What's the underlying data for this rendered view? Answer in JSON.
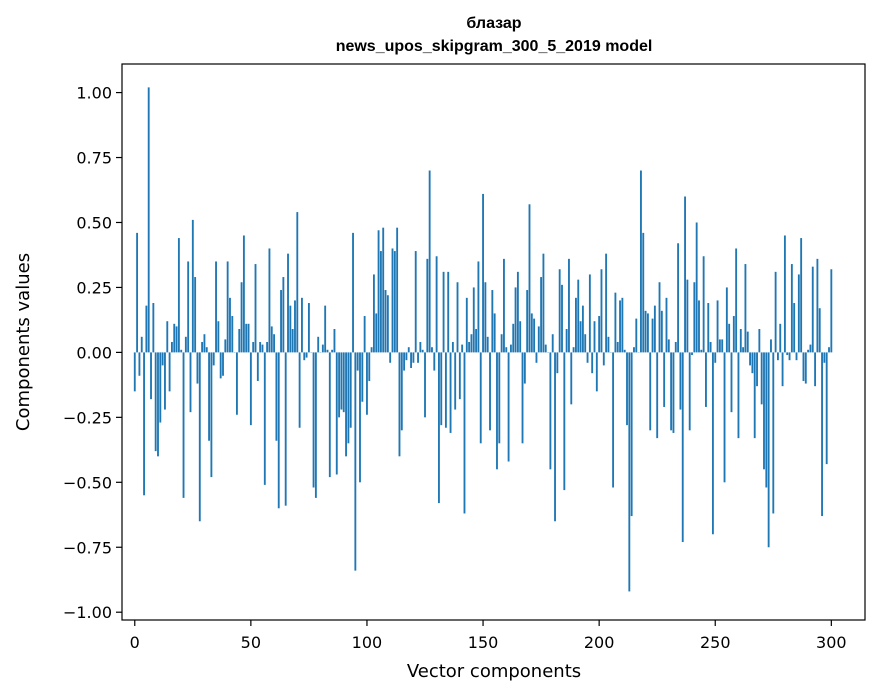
{
  "chart_data": {
    "type": "bar",
    "title_line1": "блазар",
    "title_line2": "news_upos_skipgram_300_5_2019 model",
    "xlabel": "Vector components",
    "ylabel": "Components values",
    "xlim": [
      -5.5,
      314.5
    ],
    "ylim": [
      -1.03,
      1.11
    ],
    "xticks": [
      0,
      50,
      100,
      150,
      200,
      250,
      300
    ],
    "xtick_labels": [
      "0",
      "50",
      "100",
      "150",
      "200",
      "250",
      "300"
    ],
    "yticks": [
      -1.0,
      -0.75,
      -0.5,
      -0.25,
      0.0,
      0.25,
      0.5,
      0.75,
      1.0
    ],
    "ytick_labels": [
      "−1.00",
      "−0.75",
      "−0.50",
      "−0.25",
      "0.00",
      "0.25",
      "0.50",
      "0.75",
      "1.00"
    ],
    "bar_color": "#1f77b4",
    "values": [
      -0.15,
      0.46,
      -0.09,
      0.06,
      -0.55,
      0.18,
      1.02,
      -0.18,
      0.19,
      -0.38,
      -0.4,
      -0.27,
      -0.05,
      -0.22,
      0.12,
      -0.15,
      0.04,
      0.11,
      0.1,
      0.44,
      0.01,
      -0.56,
      0.06,
      0.35,
      -0.23,
      0.51,
      0.29,
      -0.12,
      -0.65,
      0.04,
      0.07,
      0.02,
      -0.34,
      -0.48,
      -0.05,
      0.35,
      0.12,
      -0.1,
      -0.09,
      0.05,
      0.35,
      0.21,
      0.14,
      0.0,
      -0.24,
      0.09,
      0.27,
      0.45,
      0.11,
      0.11,
      -0.28,
      0.04,
      0.34,
      -0.11,
      0.04,
      0.03,
      -0.51,
      0.04,
      0.4,
      0.1,
      0.07,
      -0.34,
      -0.6,
      0.24,
      0.29,
      -0.59,
      0.38,
      0.18,
      0.09,
      0.2,
      0.54,
      -0.29,
      0.21,
      -0.03,
      -0.02,
      0.19,
      0.0,
      -0.52,
      -0.56,
      0.06,
      0.0,
      0.03,
      0.18,
      0.01,
      -0.48,
      0.01,
      0.09,
      -0.47,
      -0.25,
      -0.22,
      -0.23,
      -0.4,
      -0.35,
      -0.29,
      0.46,
      -0.84,
      -0.07,
      -0.5,
      -0.19,
      0.14,
      -0.24,
      -0.11,
      0.02,
      0.3,
      0.15,
      0.47,
      0.39,
      0.48,
      0.24,
      0.22,
      -0.04,
      0.4,
      0.39,
      0.48,
      -0.4,
      -0.3,
      -0.07,
      -0.03,
      0.02,
      -0.06,
      -0.04,
      0.39,
      -0.04,
      0.04,
      0.01,
      -0.25,
      0.36,
      0.7,
      0.02,
      -0.07,
      0.37,
      -0.58,
      -0.28,
      0.31,
      -0.29,
      0.31,
      -0.31,
      0.04,
      -0.22,
      0.27,
      -0.18,
      0.03,
      -0.62,
      0.21,
      0.04,
      0.07,
      0.25,
      0.09,
      0.35,
      -0.35,
      0.61,
      0.27,
      0.06,
      -0.3,
      0.24,
      0.15,
      -0.45,
      -0.35,
      0.07,
      0.36,
      0.02,
      -0.42,
      0.03,
      0.11,
      0.25,
      0.31,
      0.12,
      -0.35,
      -0.12,
      0.24,
      0.57,
      0.15,
      0.13,
      -0.04,
      0.1,
      0.29,
      0.38,
      0.03,
      0.0,
      -0.45,
      0.07,
      -0.65,
      -0.08,
      0.32,
      0.26,
      -0.53,
      0.09,
      0.36,
      -0.2,
      0.02,
      0.21,
      0.28,
      0.12,
      0.18,
      0.07,
      -0.04,
      0.3,
      -0.08,
      0.12,
      -0.15,
      0.14,
      0.32,
      -0.05,
      0.38,
      0.06,
      0.0,
      -0.52,
      0.23,
      0.04,
      0.2,
      0.21,
      0.01,
      -0.28,
      -0.92,
      -0.63,
      0.02,
      0.13,
      0.0,
      0.7,
      0.46,
      0.16,
      0.15,
      -0.3,
      0.13,
      0.18,
      -0.33,
      0.27,
      0.16,
      -0.21,
      0.21,
      0.05,
      -0.3,
      -0.31,
      0.04,
      0.42,
      -0.22,
      -0.73,
      0.6,
      0.28,
      -0.3,
      -0.01,
      0.27,
      0.5,
      0.2,
      0.01,
      0.37,
      -0.21,
      0.19,
      0.04,
      -0.7,
      -0.04,
      0.2,
      0.05,
      0.05,
      -0.5,
      0.25,
      0.11,
      -0.23,
      0.14,
      0.4,
      -0.33,
      0.09,
      0.02,
      0.34,
      0.08,
      -0.05,
      -0.08,
      -0.33,
      -0.13,
      0.09,
      -0.2,
      -0.45,
      -0.52,
      -0.75,
      0.05,
      -0.62,
      0.31,
      -0.03,
      0.11,
      -0.13,
      0.45,
      -0.01,
      -0.03,
      0.34,
      0.19,
      -0.03,
      0.3,
      0.44,
      -0.11,
      -0.12,
      0.01,
      0.03,
      0.33,
      -0.13,
      0.36,
      0.17,
      -0.63,
      -0.04,
      -0.43,
      0.02,
      0.32
    ]
  }
}
